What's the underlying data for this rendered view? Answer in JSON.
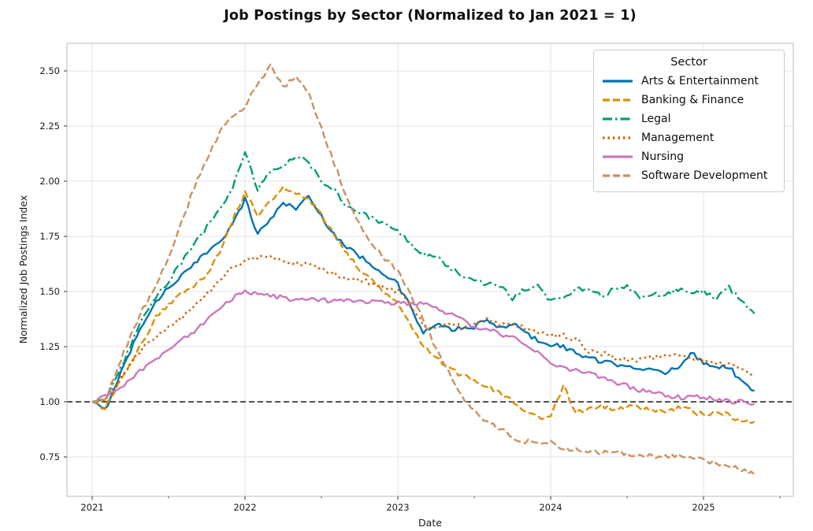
{
  "title": "Job Postings by Sector (Normalized to Jan 2021 = 1)",
  "x_axis": {
    "label": "Date",
    "major_ticks": [
      2021,
      2022,
      2023,
      2024,
      2025
    ],
    "minor_ticks": [
      2021.5,
      2022.5,
      2023.5,
      2024.5,
      2025.5
    ]
  },
  "y_axis": {
    "label": "Normalized Job Postings Index",
    "ticks": [
      0.75,
      1.0,
      1.25,
      1.5,
      1.75,
      2.0,
      2.25,
      2.5
    ]
  },
  "legend": {
    "title": "Sector",
    "position": "upper right"
  },
  "reference_line": {
    "value": 1.0,
    "color": "#1a1a1a",
    "linestyle": "dashed"
  },
  "chart_data": {
    "type": "line",
    "title": "Job Postings by Sector (Normalized to Jan 2021 = 1)",
    "xlabel": "Date",
    "ylabel": "Normalized Job Postings Index",
    "grid": true,
    "legend_position": "upper right",
    "ylim": [
      0.57,
      2.63
    ],
    "xlim_decimal_years": [
      2020.84,
      2025.6
    ],
    "x_frequency": "monthly",
    "months": [
      "2021-01",
      "2021-02",
      "2021-03",
      "2021-04",
      "2021-05",
      "2021-06",
      "2021-07",
      "2021-08",
      "2021-09",
      "2021-10",
      "2021-11",
      "2021-12",
      "2022-01",
      "2022-02",
      "2022-03",
      "2022-04",
      "2022-05",
      "2022-06",
      "2022-07",
      "2022-08",
      "2022-09",
      "2022-10",
      "2022-11",
      "2022-12",
      "2023-01",
      "2023-02",
      "2023-03",
      "2023-04",
      "2023-05",
      "2023-06",
      "2023-07",
      "2023-08",
      "2023-09",
      "2023-10",
      "2023-11",
      "2023-12",
      "2024-01",
      "2024-02",
      "2024-03",
      "2024-04",
      "2024-05",
      "2024-06",
      "2024-07",
      "2024-08",
      "2024-09",
      "2024-10",
      "2024-11",
      "2024-12",
      "2025-01",
      "2025-02",
      "2025-03",
      "2025-04",
      "2025-05"
    ],
    "series": [
      {
        "name": "Arts & Entertainment",
        "color": "#0173B2",
        "linestyle": "solid",
        "values": [
          1.0,
          0.96,
          1.1,
          1.23,
          1.36,
          1.45,
          1.52,
          1.57,
          1.62,
          1.68,
          1.73,
          1.8,
          1.92,
          1.76,
          1.83,
          1.9,
          1.88,
          1.93,
          1.84,
          1.76,
          1.7,
          1.66,
          1.62,
          1.58,
          1.53,
          1.43,
          1.31,
          1.35,
          1.33,
          1.33,
          1.34,
          1.37,
          1.33,
          1.36,
          1.31,
          1.28,
          1.26,
          1.25,
          1.22,
          1.2,
          1.18,
          1.17,
          1.17,
          1.15,
          1.14,
          1.13,
          1.16,
          1.22,
          1.18,
          1.16,
          1.16,
          1.09,
          1.05
        ]
      },
      {
        "name": "Banking & Finance",
        "color": "#DE8F05",
        "linestyle": "dashed",
        "values": [
          1.0,
          0.97,
          1.07,
          1.17,
          1.28,
          1.38,
          1.44,
          1.49,
          1.53,
          1.58,
          1.68,
          1.82,
          1.95,
          1.85,
          1.91,
          1.97,
          1.94,
          1.92,
          1.85,
          1.76,
          1.67,
          1.6,
          1.55,
          1.5,
          1.45,
          1.35,
          1.26,
          1.2,
          1.15,
          1.12,
          1.1,
          1.07,
          1.04,
          1.0,
          0.95,
          0.93,
          0.935,
          1.07,
          0.95,
          0.97,
          0.98,
          0.97,
          0.98,
          0.97,
          0.96,
          0.96,
          0.97,
          0.96,
          0.94,
          0.95,
          0.94,
          0.91,
          0.91
        ]
      },
      {
        "name": "Legal",
        "color": "#029E73",
        "linestyle": "dashdot",
        "values": [
          1.0,
          1.01,
          1.12,
          1.25,
          1.38,
          1.47,
          1.55,
          1.63,
          1.71,
          1.79,
          1.87,
          1.97,
          2.13,
          1.96,
          2.05,
          2.07,
          2.12,
          2.08,
          2.0,
          1.96,
          1.89,
          1.86,
          1.83,
          1.8,
          1.77,
          1.72,
          1.67,
          1.66,
          1.61,
          1.57,
          1.55,
          1.53,
          1.53,
          1.47,
          1.51,
          1.52,
          1.46,
          1.48,
          1.51,
          1.5,
          1.48,
          1.51,
          1.52,
          1.47,
          1.49,
          1.48,
          1.51,
          1.5,
          1.5,
          1.47,
          1.52,
          1.45,
          1.4
        ]
      },
      {
        "name": "Management",
        "color": "#D55E00",
        "linestyle": "dotted",
        "values": [
          1.0,
          1.0,
          1.08,
          1.17,
          1.25,
          1.29,
          1.34,
          1.38,
          1.43,
          1.49,
          1.55,
          1.61,
          1.64,
          1.65,
          1.66,
          1.64,
          1.63,
          1.62,
          1.6,
          1.58,
          1.56,
          1.55,
          1.54,
          1.52,
          1.5,
          1.44,
          1.35,
          1.34,
          1.35,
          1.34,
          1.36,
          1.37,
          1.35,
          1.36,
          1.33,
          1.31,
          1.3,
          1.3,
          1.28,
          1.23,
          1.22,
          1.2,
          1.19,
          1.19,
          1.2,
          1.21,
          1.21,
          1.2,
          1.19,
          1.18,
          1.17,
          1.14,
          1.12
        ]
      },
      {
        "name": "Nursing",
        "color": "#CC78BC",
        "linestyle": "solid",
        "values": [
          1.0,
          1.02,
          1.05,
          1.1,
          1.15,
          1.19,
          1.24,
          1.28,
          1.32,
          1.37,
          1.42,
          1.47,
          1.5,
          1.49,
          1.48,
          1.47,
          1.46,
          1.46,
          1.46,
          1.46,
          1.46,
          1.45,
          1.46,
          1.45,
          1.45,
          1.44,
          1.45,
          1.42,
          1.4,
          1.37,
          1.34,
          1.33,
          1.31,
          1.29,
          1.26,
          1.22,
          1.18,
          1.16,
          1.14,
          1.13,
          1.11,
          1.09,
          1.07,
          1.05,
          1.04,
          1.03,
          1.02,
          1.02,
          1.02,
          1.01,
          1.0,
          1.0,
          0.99
        ]
      },
      {
        "name": "Software Development",
        "color": "#CA9161",
        "linestyle": "dashed",
        "values": [
          1.0,
          1.01,
          1.15,
          1.3,
          1.42,
          1.53,
          1.66,
          1.81,
          1.97,
          2.1,
          2.22,
          2.3,
          2.33,
          2.45,
          2.52,
          2.43,
          2.47,
          2.4,
          2.24,
          2.08,
          1.93,
          1.8,
          1.71,
          1.65,
          1.59,
          1.49,
          1.37,
          1.24,
          1.13,
          1.03,
          0.96,
          0.91,
          0.88,
          0.84,
          0.82,
          0.82,
          0.815,
          0.79,
          0.785,
          0.775,
          0.77,
          0.78,
          0.76,
          0.76,
          0.75,
          0.75,
          0.76,
          0.75,
          0.74,
          0.72,
          0.71,
          0.69,
          0.67
        ]
      }
    ]
  }
}
